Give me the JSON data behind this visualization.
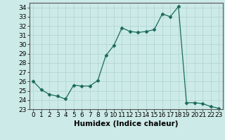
{
  "x": [
    0,
    1,
    2,
    3,
    4,
    5,
    6,
    7,
    8,
    9,
    10,
    11,
    12,
    13,
    14,
    15,
    16,
    17,
    18,
    19,
    20,
    21,
    22,
    23
  ],
  "y": [
    26.0,
    25.1,
    24.6,
    24.4,
    24.1,
    25.6,
    25.5,
    25.5,
    26.1,
    28.8,
    29.9,
    31.8,
    31.4,
    31.3,
    31.4,
    31.6,
    33.3,
    33.0,
    34.1,
    23.7,
    23.7,
    23.6,
    23.3,
    23.1
  ],
  "line_color": "#1a6b5a",
  "marker": "D",
  "marker_size": 2.5,
  "bg_color": "#cceae7",
  "grid_color": "#b0d4d0",
  "xlabel": "Humidex (Indice chaleur)",
  "ylim": [
    23,
    34.5
  ],
  "xlim": [
    -0.5,
    23.5
  ],
  "yticks": [
    23,
    24,
    25,
    26,
    27,
    28,
    29,
    30,
    31,
    32,
    33,
    34
  ],
  "xticks": [
    0,
    1,
    2,
    3,
    4,
    5,
    6,
    7,
    8,
    9,
    10,
    11,
    12,
    13,
    14,
    15,
    16,
    17,
    18,
    19,
    20,
    21,
    22,
    23
  ],
  "tick_fontsize": 6.5,
  "label_fontsize": 7.5
}
